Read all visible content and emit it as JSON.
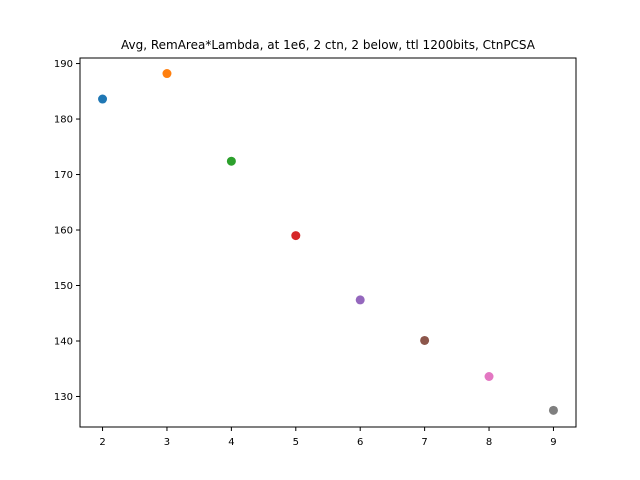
{
  "chart_data": {
    "type": "scatter",
    "title": "Avg, RemArea*Lambda, at 1e6, 2 ctn, 2 below, ttl 1200bits, CtnPCSA",
    "xlabel": "",
    "ylabel": "",
    "xlim": [
      1.65,
      9.35
    ],
    "ylim": [
      124.5,
      191.0
    ],
    "x_ticks": [
      2,
      3,
      4,
      5,
      6,
      7,
      8,
      9
    ],
    "y_ticks": [
      130,
      140,
      150,
      160,
      170,
      180,
      190
    ],
    "grid": false,
    "points": [
      {
        "x": 2,
        "y": 183.6,
        "color": "#1f77b4"
      },
      {
        "x": 3,
        "y": 188.2,
        "color": "#ff7f0e"
      },
      {
        "x": 4,
        "y": 172.4,
        "color": "#2ca02c"
      },
      {
        "x": 5,
        "y": 159.0,
        "color": "#d62728"
      },
      {
        "x": 6,
        "y": 147.4,
        "color": "#9467bd"
      },
      {
        "x": 7,
        "y": 140.1,
        "color": "#8c564b"
      },
      {
        "x": 8,
        "y": 133.6,
        "color": "#e377c2"
      },
      {
        "x": 9,
        "y": 127.5,
        "color": "#7f7f7f"
      }
    ]
  }
}
